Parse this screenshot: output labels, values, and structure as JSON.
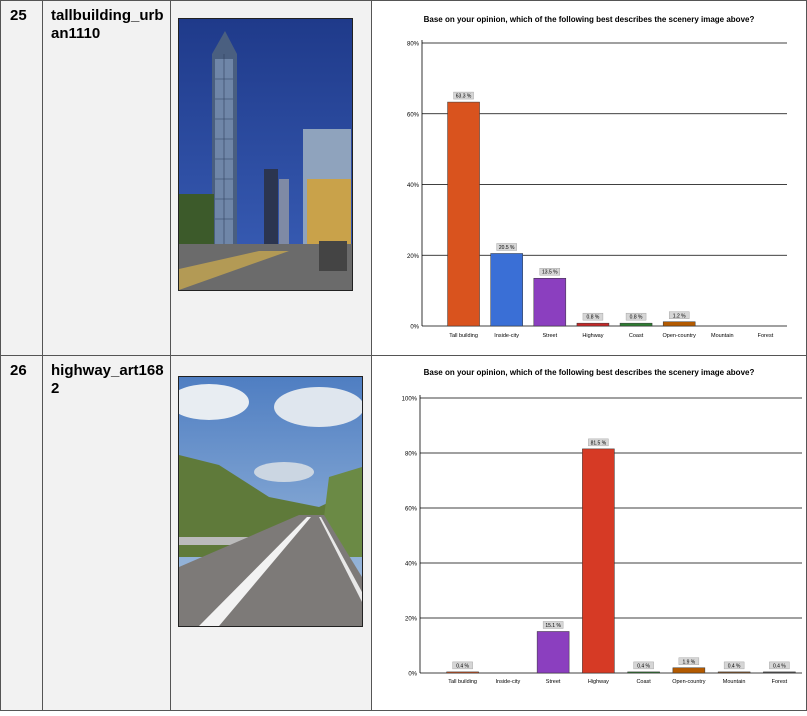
{
  "rows": [
    {
      "number": "25",
      "name": "tallbuilding_urban1110",
      "image_desc": "tall-building-photo",
      "chart_title": "Base on your opinion, which of the following best describes the scenery image above?"
    },
    {
      "number": "26",
      "name": "highway_art1682",
      "image_desc": "highway-photo",
      "chart_title": "Base on your opinion, which of the following best describes the scenery image above?"
    }
  ],
  "chart_data": [
    {
      "type": "bar",
      "title": "Base on your opinion, which of the following best describes the scenery image above?",
      "categories": [
        "Tall building",
        "Inside-city",
        "Street",
        "Highway",
        "Coast",
        "Open-country",
        "Mountain",
        "Forest"
      ],
      "values": [
        63.3,
        20.5,
        13.5,
        0.8,
        0.8,
        1.2,
        null,
        null
      ],
      "value_labels": [
        "63.3 %",
        "20.5 %",
        "13.5 %",
        "0.8 %",
        "0.8 %",
        "1.2 %",
        "",
        ""
      ],
      "colors": [
        "#d9531e",
        "#3a6fd6",
        "#8b3fbf",
        "#c62828",
        "#2e7d32",
        "#b35a00",
        "#999999",
        "#999999"
      ],
      "yticks": [
        "0%",
        "20%",
        "40%",
        "60%",
        "80%"
      ],
      "ylim": [
        0,
        80
      ],
      "grid": true
    },
    {
      "type": "bar",
      "title": "Base on your opinion, which of the following best describes the scenery image above?",
      "categories": [
        "Tall building",
        "Inside-city",
        "Street",
        "Highway",
        "Coast",
        "Open-country",
        "Mountain",
        "Forest"
      ],
      "values": [
        0.4,
        null,
        15.1,
        81.5,
        0.4,
        1.9,
        0.4,
        0.4
      ],
      "value_labels": [
        "0.4 %",
        "",
        "15.1 %",
        "81.5 %",
        "0.4 %",
        "1.9 %",
        "0.4 %",
        "0.4 %"
      ],
      "colors": [
        "#d9531e",
        "#3a6fd6",
        "#8b3fbf",
        "#d63a25",
        "#2e7d32",
        "#b35a00",
        "#8a5a2b",
        "#555555"
      ],
      "yticks": [
        "0%",
        "20%",
        "40%",
        "60%",
        "80%",
        "100%"
      ],
      "ylim": [
        0,
        100
      ],
      "grid": true
    }
  ]
}
